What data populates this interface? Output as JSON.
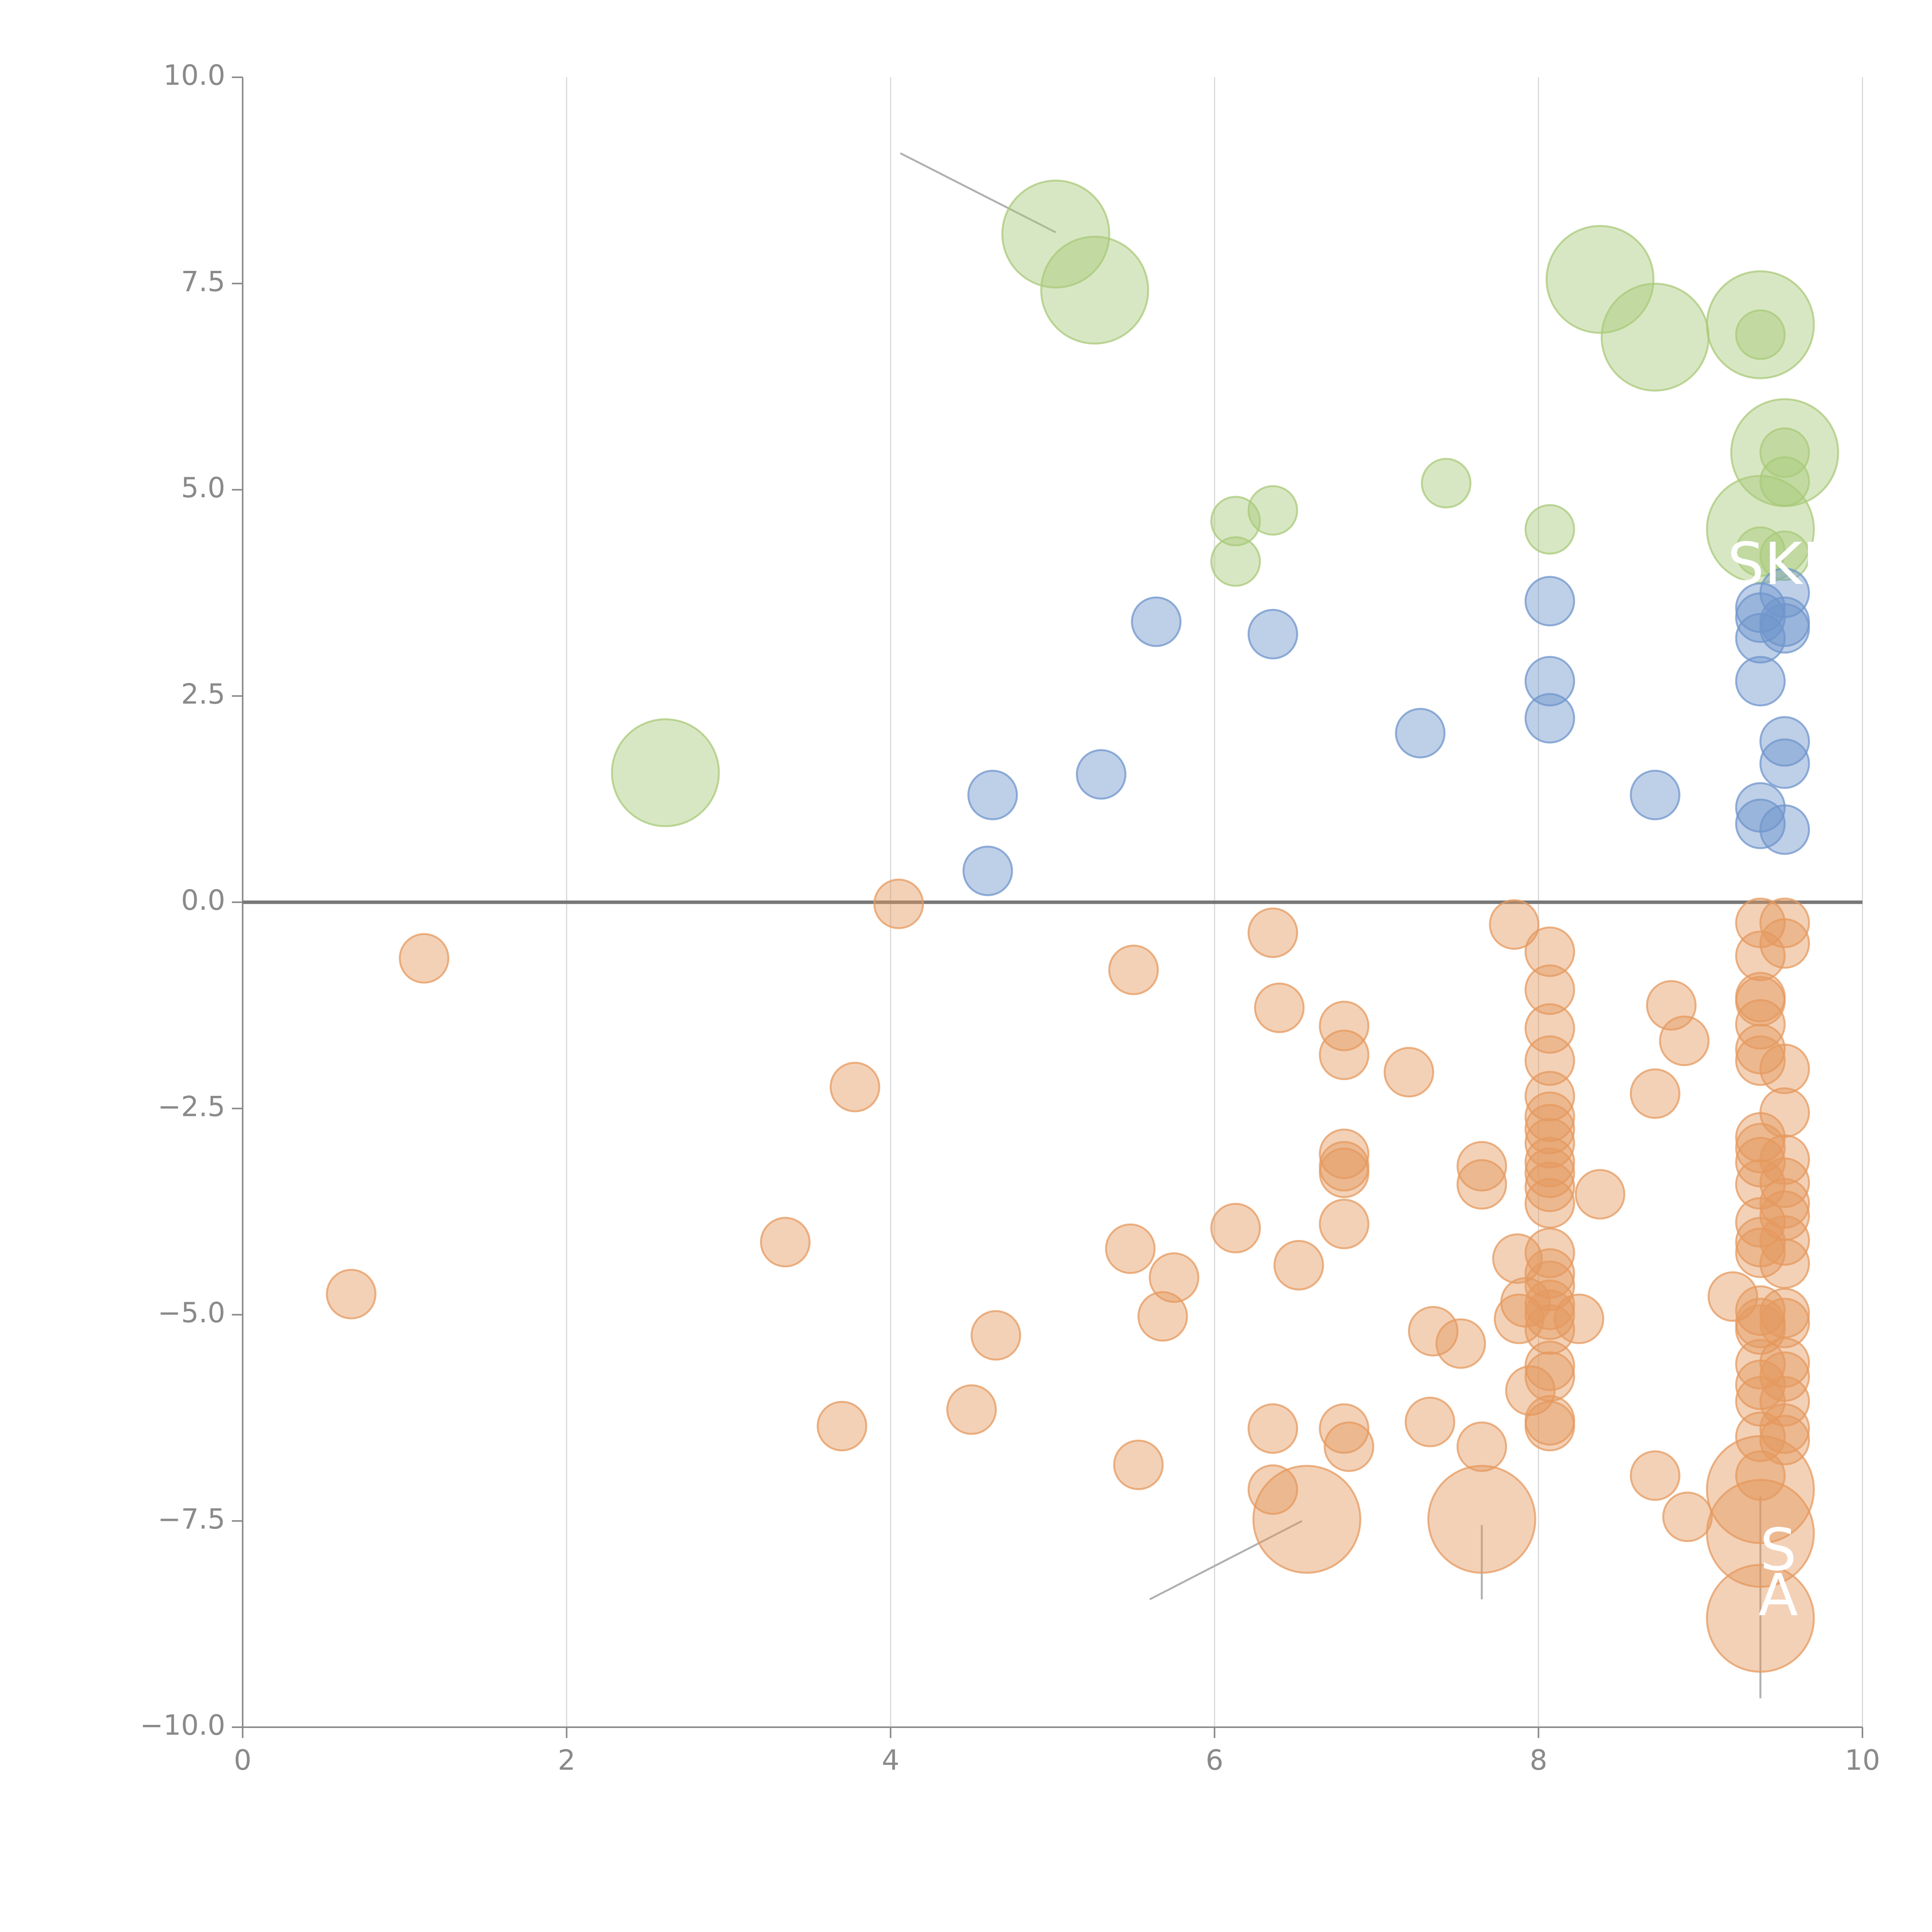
{
  "colors": {
    "green": "#a9c97a",
    "blue": "#6f95cc",
    "orange": "#e59a5f",
    "axis": "#8a8a8a",
    "grid": "#d9d9d9"
  },
  "chart_data": {
    "type": "scatter",
    "title": "",
    "xlabel": "",
    "ylabel": "",
    "xlim": [
      0,
      10
    ],
    "ylim": [
      -10,
      10
    ],
    "x_ticks": [
      0,
      2,
      4,
      6,
      8,
      10
    ],
    "x_tick_labels": [
      "0",
      "2",
      "4",
      "6",
      "8",
      "10"
    ],
    "y_ticks": [
      10,
      7.5,
      5,
      2.5,
      0,
      -2.5,
      -5,
      -7.5,
      -10
    ],
    "y_tick_labels": [
      "10.0",
      "7.5",
      "5.0",
      "2.5",
      "0.0",
      "−2.5",
      "−5.0",
      "−7.5",
      "−10.0"
    ],
    "grid": "vertical",
    "baseline": 0,
    "text_fragments": [
      {
        "text": "S",
        "x": 9.48,
        "y": -7.9
      },
      {
        "text": "A",
        "x": 9.48,
        "y": -8.45
      },
      {
        "text": "SKI",
        "x": 9.45,
        "y": 4.05
      }
    ],
    "leaders": [
      {
        "x1": 4.06,
        "y1": 9.08,
        "x2": 5.02,
        "y2": 8.12,
        "color": "gray"
      },
      {
        "x1": 6.54,
        "y1": -7.5,
        "x2": 5.6,
        "y2": -8.45,
        "color": "gray"
      },
      {
        "x1": 7.65,
        "y1": -7.55,
        "x2": 7.65,
        "y2": -8.45,
        "color": "gray"
      },
      {
        "x1": 9.37,
        "y1": -7.2,
        "x2": 9.37,
        "y2": -9.65,
        "color": "gray"
      },
      {
        "x1": 9.37,
        "y1": 6.95,
        "x2": 9.25,
        "y2": 6.75,
        "color": "white"
      },
      {
        "x1": 8.84,
        "y1": 7.2,
        "x2": 8.72,
        "y2": 6.95,
        "color": "white"
      },
      {
        "x1": 9.2,
        "y1": 5.45,
        "x2": 9.37,
        "y2": 5.45,
        "color": "white"
      }
    ],
    "series": [
      {
        "name": "green",
        "color_key": "green",
        "points": [
          [
            5.02,
            8.1,
            2.2
          ],
          [
            5.26,
            7.42,
            2.2
          ],
          [
            8.38,
            7.55,
            2.2
          ],
          [
            8.72,
            6.85,
            2.2
          ],
          [
            9.37,
            7.0,
            2.2
          ],
          [
            9.37,
            6.88,
            1.0
          ],
          [
            9.52,
            5.45,
            2.2
          ],
          [
            9.52,
            5.45,
            1.0
          ],
          [
            9.52,
            5.1,
            1.0
          ],
          [
            9.37,
            4.52,
            2.2
          ],
          [
            9.37,
            4.25,
            1.0
          ],
          [
            9.52,
            4.2,
            1.0
          ],
          [
            2.61,
            1.57,
            2.2
          ],
          [
            6.13,
            4.62,
            1.0
          ],
          [
            6.36,
            4.75,
            1.0
          ],
          [
            6.13,
            4.13,
            1.0
          ],
          [
            7.43,
            5.08,
            1.0
          ],
          [
            8.07,
            4.52,
            1.0
          ]
        ]
      },
      {
        "name": "blue",
        "color_key": "blue",
        "points": [
          [
            5.64,
            3.4,
            1.0
          ],
          [
            6.36,
            3.25,
            1.0
          ],
          [
            4.63,
            1.3,
            1.0
          ],
          [
            5.3,
            1.55,
            1.0
          ],
          [
            4.6,
            0.38,
            1.0
          ],
          [
            7.27,
            2.05,
            1.0
          ],
          [
            8.07,
            3.65,
            1.0
          ],
          [
            8.07,
            2.68,
            1.0
          ],
          [
            8.07,
            2.23,
            1.0
          ],
          [
            8.72,
            1.3,
            1.0
          ],
          [
            9.37,
            3.57,
            1.0
          ],
          [
            9.37,
            3.45,
            1.0
          ],
          [
            9.37,
            3.2,
            1.0
          ],
          [
            9.52,
            3.75,
            1.0
          ],
          [
            9.52,
            3.4,
            1.0
          ],
          [
            9.52,
            3.32,
            1.0
          ],
          [
            9.37,
            2.68,
            1.0
          ],
          [
            9.52,
            1.95,
            1.0
          ],
          [
            9.52,
            1.68,
            1.0
          ],
          [
            9.37,
            1.15,
            1.0
          ],
          [
            9.37,
            0.95,
            1.0
          ],
          [
            9.52,
            0.88,
            1.0
          ]
        ]
      },
      {
        "name": "orange",
        "color_key": "orange",
        "points": [
          [
            4.05,
            -0.02,
            1.0
          ],
          [
            1.12,
            -0.68,
            1.0
          ],
          [
            5.5,
            -0.82,
            1.0
          ],
          [
            6.36,
            -0.37,
            1.0
          ],
          [
            6.4,
            -1.28,
            1.0
          ],
          [
            6.8,
            -1.5,
            1.0
          ],
          [
            6.8,
            -1.85,
            1.0
          ],
          [
            7.2,
            -2.06,
            1.0
          ],
          [
            3.78,
            -2.24,
            1.0
          ],
          [
            7.85,
            -0.27,
            1.0
          ],
          [
            8.07,
            -0.6,
            1.0
          ],
          [
            8.07,
            -1.06,
            1.0
          ],
          [
            8.07,
            -1.53,
            1.0
          ],
          [
            8.07,
            -1.92,
            1.0
          ],
          [
            8.07,
            -2.35,
            1.0
          ],
          [
            8.07,
            -2.6,
            1.0
          ],
          [
            8.07,
            -2.75,
            1.0
          ],
          [
            8.07,
            -2.92,
            1.0
          ],
          [
            8.07,
            -3.15,
            1.0
          ],
          [
            8.07,
            -3.28,
            1.0
          ],
          [
            8.07,
            -3.45,
            1.0
          ],
          [
            8.07,
            -3.65,
            1.0
          ],
          [
            8.82,
            -1.25,
            1.0
          ],
          [
            8.9,
            -1.68,
            1.0
          ],
          [
            8.72,
            -2.32,
            1.0
          ],
          [
            8.38,
            -3.54,
            1.0
          ],
          [
            7.65,
            -3.2,
            1.0
          ],
          [
            7.65,
            -3.42,
            1.0
          ],
          [
            6.8,
            -3.05,
            1.0
          ],
          [
            6.8,
            -3.2,
            1.0
          ],
          [
            6.8,
            -3.28,
            1.0
          ],
          [
            6.8,
            -3.9,
            1.0
          ],
          [
            6.13,
            -3.95,
            1.0
          ],
          [
            6.52,
            -4.4,
            1.0
          ],
          [
            5.48,
            -4.2,
            1.0
          ],
          [
            5.75,
            -4.55,
            1.0
          ],
          [
            5.68,
            -5.02,
            1.0
          ],
          [
            3.35,
            -4.12,
            1.0
          ],
          [
            0.67,
            -4.75,
            1.0
          ],
          [
            4.65,
            -5.25,
            1.0
          ],
          [
            4.5,
            -6.15,
            1.0
          ],
          [
            3.7,
            -6.35,
            1.0
          ],
          [
            5.53,
            -6.82,
            1.0
          ],
          [
            6.36,
            -6.38,
            1.0
          ],
          [
            6.36,
            -7.12,
            1.0
          ],
          [
            6.8,
            -6.38,
            1.0
          ],
          [
            6.83,
            -6.6,
            1.0
          ],
          [
            7.33,
            -6.3,
            1.0
          ],
          [
            7.35,
            -5.2,
            1.0
          ],
          [
            7.52,
            -5.35,
            1.0
          ],
          [
            7.65,
            -6.6,
            1.0
          ],
          [
            7.87,
            -4.32,
            1.0
          ],
          [
            7.92,
            -4.85,
            1.0
          ],
          [
            7.88,
            -5.05,
            1.0
          ],
          [
            7.95,
            -5.92,
            1.0
          ],
          [
            8.07,
            -4.25,
            1.0
          ],
          [
            8.07,
            -4.5,
            1.0
          ],
          [
            8.07,
            -4.65,
            1.0
          ],
          [
            8.07,
            -4.88,
            1.0
          ],
          [
            8.07,
            -5.0,
            1.0
          ],
          [
            8.07,
            -5.18,
            1.0
          ],
          [
            8.25,
            -5.05,
            1.0
          ],
          [
            8.07,
            -5.62,
            1.0
          ],
          [
            8.07,
            -5.75,
            1.0
          ],
          [
            8.07,
            -6.28,
            1.0
          ],
          [
            8.07,
            -6.35,
            1.0
          ],
          [
            8.72,
            -6.95,
            1.0
          ],
          [
            8.92,
            -7.45,
            1.0
          ],
          [
            9.2,
            -4.78,
            1.0
          ],
          [
            6.57,
            -7.48,
            2.2
          ],
          [
            7.65,
            -7.48,
            2.2
          ],
          [
            9.37,
            -7.12,
            2.2
          ],
          [
            9.37,
            -7.65,
            2.2
          ],
          [
            9.37,
            -8.68,
            2.2
          ],
          [
            9.37,
            -0.25,
            1.0
          ],
          [
            9.37,
            -0.65,
            1.0
          ],
          [
            9.37,
            -1.15,
            1.0
          ],
          [
            9.37,
            -1.2,
            1.0
          ],
          [
            9.37,
            -1.48,
            1.0
          ],
          [
            9.37,
            -1.78,
            1.0
          ],
          [
            9.37,
            -1.92,
            1.0
          ],
          [
            9.37,
            -2.85,
            1.0
          ],
          [
            9.37,
            -2.98,
            1.0
          ],
          [
            9.37,
            -3.15,
            1.0
          ],
          [
            9.37,
            -3.42,
            1.0
          ],
          [
            9.37,
            -3.88,
            1.0
          ],
          [
            9.37,
            -4.12,
            1.0
          ],
          [
            9.37,
            -4.25,
            1.0
          ],
          [
            9.37,
            -4.95,
            1.0
          ],
          [
            9.37,
            -5.1,
            1.0
          ],
          [
            9.37,
            -5.18,
            1.0
          ],
          [
            9.37,
            -5.6,
            1.0
          ],
          [
            9.37,
            -5.85,
            1.0
          ],
          [
            9.37,
            -6.05,
            1.0
          ],
          [
            9.37,
            -6.48,
            1.0
          ],
          [
            9.37,
            -6.95,
            1.0
          ],
          [
            9.52,
            -0.25,
            1.0
          ],
          [
            9.52,
            -0.5,
            1.0
          ],
          [
            9.52,
            -2.02,
            1.0
          ],
          [
            9.52,
            -2.55,
            1.0
          ],
          [
            9.52,
            -3.12,
            1.0
          ],
          [
            9.52,
            -3.4,
            1.0
          ],
          [
            9.52,
            -3.65,
            1.0
          ],
          [
            9.52,
            -3.8,
            1.0
          ],
          [
            9.52,
            -4.1,
            1.0
          ],
          [
            9.52,
            -4.38,
            1.0
          ],
          [
            9.52,
            -4.98,
            1.0
          ],
          [
            9.52,
            -5.1,
            1.0
          ],
          [
            9.52,
            -5.58,
            1.0
          ],
          [
            9.52,
            -5.75,
            1.0
          ],
          [
            9.52,
            -6.05,
            1.0
          ],
          [
            9.52,
            -6.38,
            1.0
          ],
          [
            9.52,
            -6.52,
            1.0
          ]
        ]
      }
    ]
  }
}
